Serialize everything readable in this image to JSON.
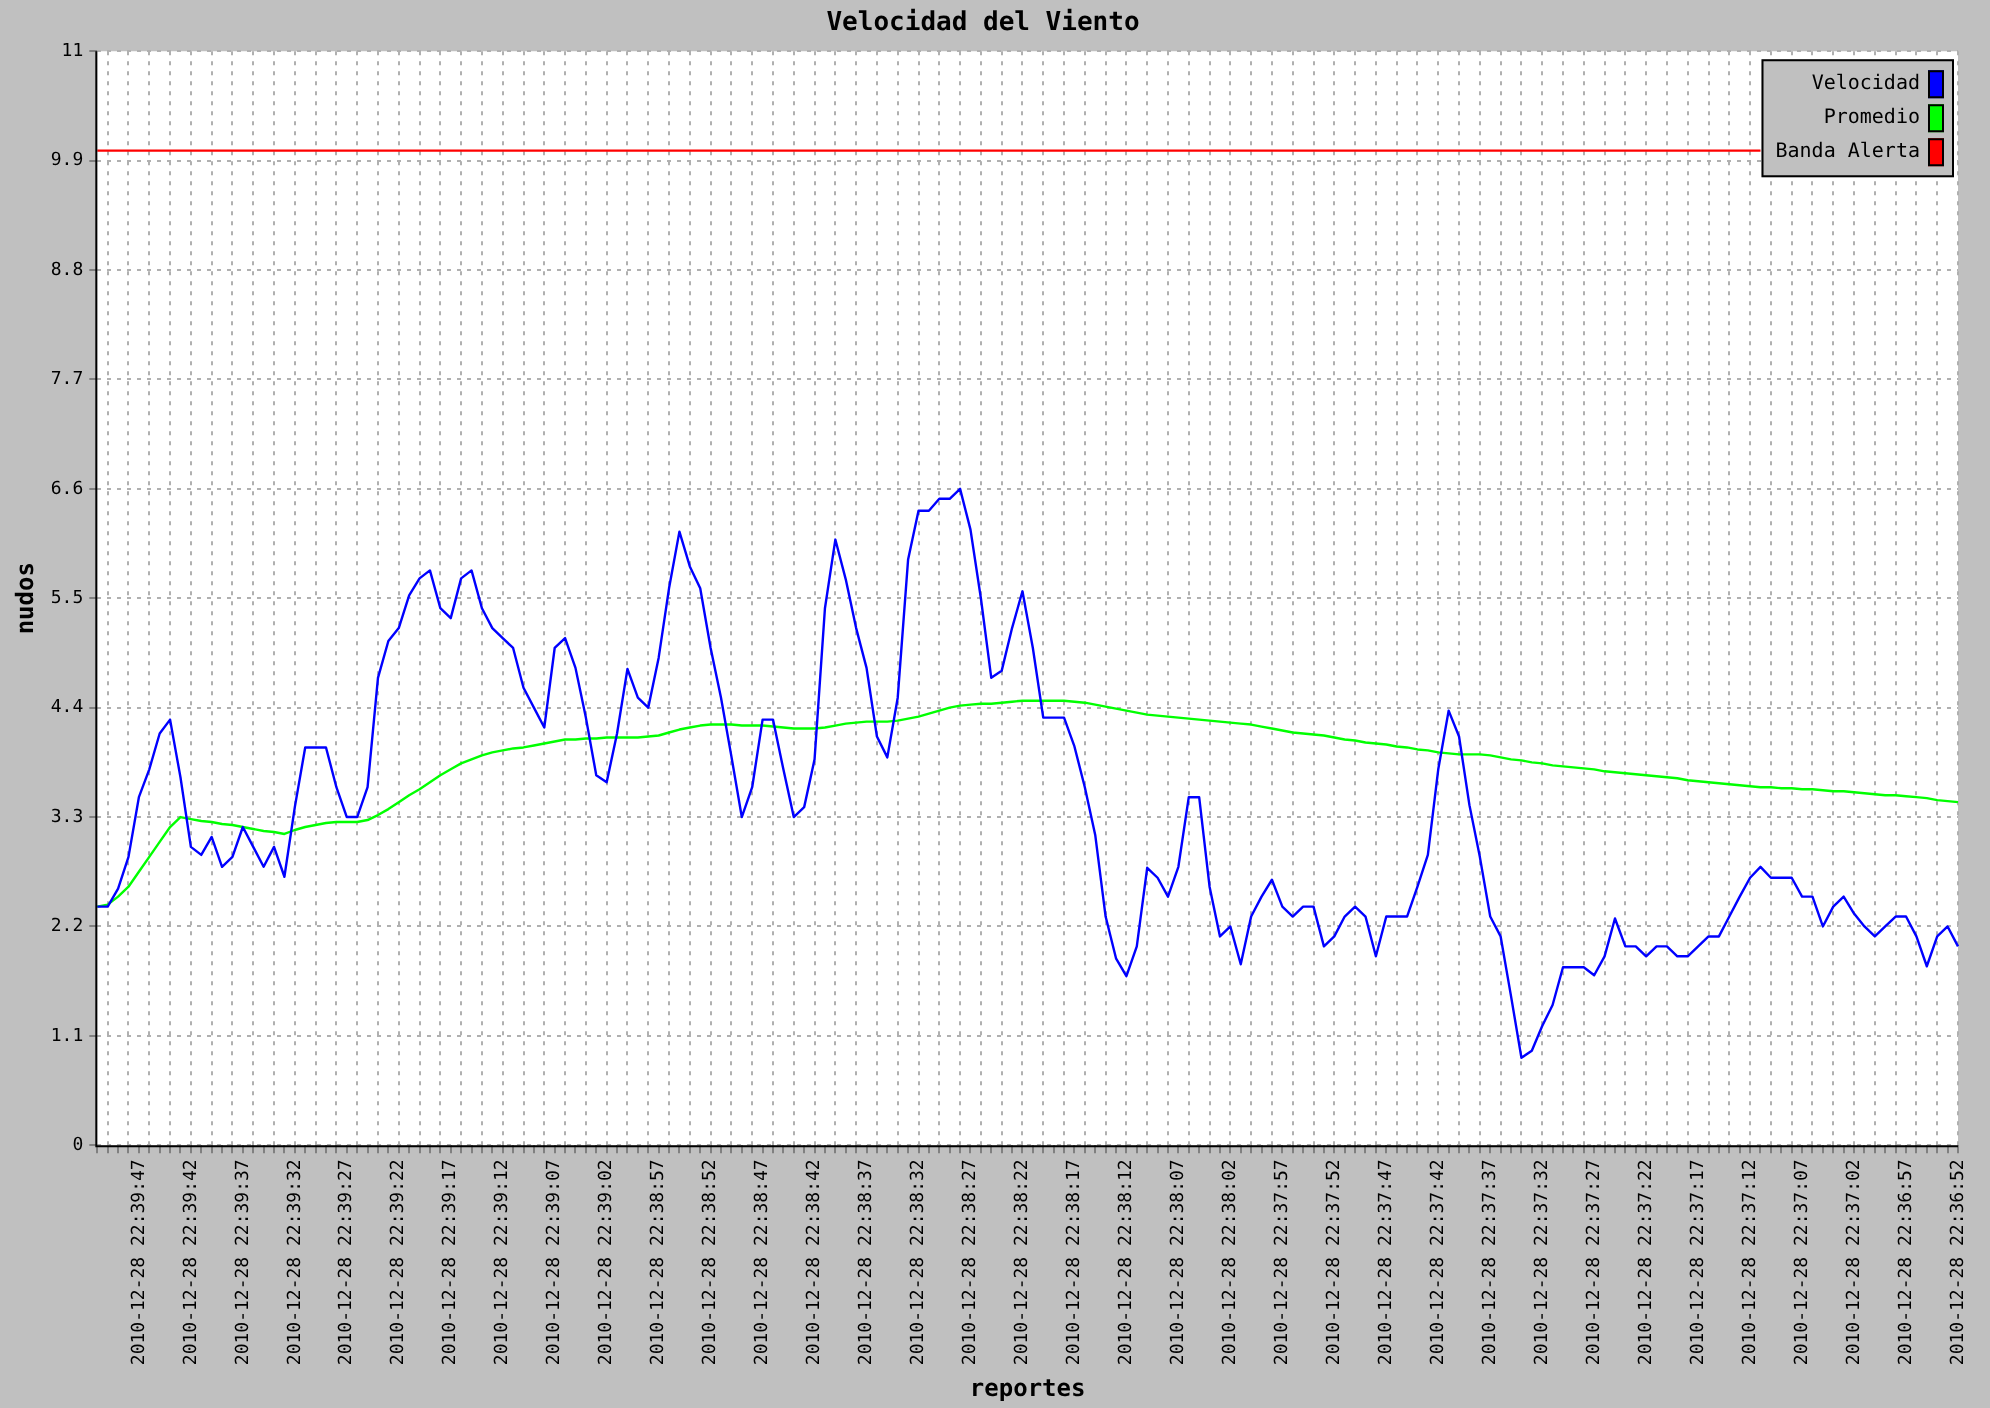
{
  "chart_data": {
    "type": "line",
    "title": "Velocidad del Viento",
    "xlabel": "reportes",
    "ylabel": "nudos",
    "categories": [
      null,
      null,
      null,
      null,
      "2010-12-28 22:39:47",
      null,
      null,
      null,
      null,
      "2010-12-28 22:39:42",
      null,
      null,
      null,
      null,
      "2010-12-28 22:39:37",
      null,
      null,
      null,
      null,
      "2010-12-28 22:39:32",
      null,
      null,
      null,
      null,
      "2010-12-28 22:39:27",
      null,
      null,
      null,
      null,
      "2010-12-28 22:39:22",
      null,
      null,
      null,
      null,
      "2010-12-28 22:39:17",
      null,
      null,
      null,
      null,
      "2010-12-28 22:39:12",
      null,
      null,
      null,
      null,
      "2010-12-28 22:39:07",
      null,
      null,
      null,
      null,
      "2010-12-28 22:39:02",
      null,
      null,
      null,
      null,
      "2010-12-28 22:38:57",
      null,
      null,
      null,
      null,
      "2010-12-28 22:38:52",
      null,
      null,
      null,
      null,
      "2010-12-28 22:38:47",
      null,
      null,
      null,
      null,
      "2010-12-28 22:38:42",
      null,
      null,
      null,
      null,
      "2010-12-28 22:38:37",
      null,
      null,
      null,
      null,
      "2010-12-28 22:38:32",
      null,
      null,
      null,
      null,
      "2010-12-28 22:38:27",
      null,
      null,
      null,
      null,
      "2010-12-28 22:38:22",
      null,
      null,
      null,
      null,
      "2010-12-28 22:38:17",
      null,
      null,
      null,
      null,
      "2010-12-28 22:38:12",
      null,
      null,
      null,
      null,
      "2010-12-28 22:38:07",
      null,
      null,
      null,
      null,
      "2010-12-28 22:38:02",
      null,
      null,
      null,
      null,
      "2010-12-28 22:37:57",
      null,
      null,
      null,
      null,
      "2010-12-28 22:37:52",
      null,
      null,
      null,
      null,
      "2010-12-28 22:37:47",
      null,
      null,
      null,
      null,
      "2010-12-28 22:37:42",
      null,
      null,
      null,
      null,
      "2010-12-28 22:37:37",
      null,
      null,
      null,
      null,
      "2010-12-28 22:37:32",
      null,
      null,
      null,
      null,
      "2010-12-28 22:37:27",
      null,
      null,
      null,
      null,
      "2010-12-28 22:37:22",
      null,
      null,
      null,
      null,
      "2010-12-28 22:37:17",
      null,
      null,
      null,
      null,
      "2010-12-28 22:37:12",
      null,
      null,
      null,
      null,
      "2010-12-28 22:37:07",
      null,
      null,
      null,
      null,
      "2010-12-28 22:37:02",
      null,
      null,
      null,
      null,
      "2010-12-28 22:36:57",
      null,
      null,
      null,
      null,
      "2010-12-28 22:36:52"
    ],
    "series": [
      {
        "name": "Velocidad",
        "color": "#0000ff",
        "values": [
          2.4,
          2.4,
          2.58,
          2.9,
          3.5,
          3.78,
          4.14,
          4.28,
          3.7,
          3.0,
          2.92,
          3.1,
          2.8,
          2.9,
          3.2,
          3.0,
          2.8,
          3.0,
          2.7,
          3.4,
          4.0,
          4.0,
          4.0,
          3.6,
          3.3,
          3.3,
          3.6,
          4.7,
          5.07,
          5.2,
          5.53,
          5.7,
          5.78,
          5.4,
          5.3,
          5.7,
          5.78,
          5.4,
          5.2,
          5.1,
          5.0,
          4.6,
          4.4,
          4.2,
          5.0,
          5.1,
          4.8,
          4.3,
          3.72,
          3.65,
          4.14,
          4.79,
          4.5,
          4.4,
          4.9,
          5.6,
          6.17,
          5.82,
          5.6,
          5.0,
          4.5,
          3.91,
          3.3,
          3.6,
          4.28,
          4.28,
          3.78,
          3.3,
          3.4,
          3.88,
          5.4,
          6.09,
          5.69,
          5.2,
          4.8,
          4.11,
          3.9,
          4.5,
          5.89,
          6.38,
          6.38,
          6.5,
          6.5,
          6.6,
          6.19,
          5.5,
          4.7,
          4.77,
          5.2,
          5.57,
          5.0,
          4.3,
          4.3,
          4.3,
          4.01,
          3.6,
          3.12,
          2.3,
          1.88,
          1.7,
          2.0,
          2.79,
          2.69,
          2.5,
          2.8,
          3.5,
          3.5,
          2.6,
          2.1,
          2.2,
          1.82,
          2.3,
          2.5,
          2.67,
          2.4,
          2.3,
          2.4,
          2.4,
          2.0,
          2.1,
          2.3,
          2.4,
          2.3,
          1.9,
          2.3,
          2.3,
          2.3,
          2.6,
          2.92,
          3.78,
          4.37,
          4.11,
          3.42,
          2.9,
          2.3,
          2.1,
          1.5,
          0.88,
          0.95,
          1.2,
          1.41,
          1.79,
          1.79,
          1.79,
          1.71,
          1.9,
          2.28,
          2.0,
          2.0,
          1.9,
          2.0,
          2.0,
          1.9,
          1.9,
          2.0,
          2.1,
          2.1,
          2.3,
          2.5,
          2.69,
          2.8,
          2.69,
          2.69,
          2.69,
          2.5,
          2.5,
          2.2,
          2.4,
          2.5,
          2.33,
          2.2,
          2.1,
          2.2,
          2.3,
          2.3,
          2.1,
          1.8,
          2.1,
          2.2,
          2.0
        ]
      },
      {
        "name": "Promedio",
        "color": "#00ff00",
        "values": [
          2.4,
          2.42,
          2.5,
          2.6,
          2.75,
          2.9,
          3.05,
          3.2,
          3.3,
          3.28,
          3.26,
          3.25,
          3.23,
          3.22,
          3.2,
          3.18,
          3.16,
          3.15,
          3.13,
          3.17,
          3.2,
          3.22,
          3.24,
          3.25,
          3.25,
          3.25,
          3.27,
          3.32,
          3.38,
          3.45,
          3.52,
          3.58,
          3.65,
          3.72,
          3.78,
          3.84,
          3.88,
          3.92,
          3.95,
          3.97,
          3.99,
          4.0,
          4.02,
          4.04,
          4.06,
          4.08,
          4.08,
          4.09,
          4.09,
          4.1,
          4.1,
          4.1,
          4.1,
          4.11,
          4.12,
          4.15,
          4.18,
          4.2,
          4.22,
          4.23,
          4.23,
          4.23,
          4.22,
          4.22,
          4.22,
          4.21,
          4.2,
          4.19,
          4.19,
          4.19,
          4.2,
          4.22,
          4.24,
          4.25,
          4.26,
          4.26,
          4.26,
          4.27,
          4.29,
          4.31,
          4.34,
          4.37,
          4.4,
          4.42,
          4.43,
          4.44,
          4.44,
          4.45,
          4.46,
          4.47,
          4.47,
          4.47,
          4.47,
          4.47,
          4.46,
          4.45,
          4.43,
          4.41,
          4.39,
          4.37,
          4.35,
          4.33,
          4.32,
          4.31,
          4.3,
          4.29,
          4.28,
          4.27,
          4.26,
          4.25,
          4.24,
          4.23,
          4.21,
          4.19,
          4.17,
          4.15,
          4.14,
          4.13,
          4.12,
          4.1,
          4.08,
          4.07,
          4.05,
          4.04,
          4.03,
          4.01,
          4.0,
          3.98,
          3.97,
          3.95,
          3.94,
          3.93,
          3.93,
          3.93,
          3.92,
          3.9,
          3.88,
          3.87,
          3.85,
          3.84,
          3.82,
          3.81,
          3.8,
          3.79,
          3.78,
          3.76,
          3.75,
          3.74,
          3.73,
          3.72,
          3.71,
          3.7,
          3.69,
          3.67,
          3.66,
          3.65,
          3.64,
          3.63,
          3.62,
          3.61,
          3.6,
          3.6,
          3.59,
          3.59,
          3.58,
          3.58,
          3.57,
          3.56,
          3.56,
          3.55,
          3.54,
          3.53,
          3.52,
          3.52,
          3.51,
          3.5,
          3.49,
          3.47,
          3.46,
          3.45
        ]
      },
      {
        "name": "Banda Alerta",
        "color": "#ff0000",
        "values": [
          10,
          10,
          10,
          10,
          10,
          10,
          10,
          10,
          10,
          10,
          10,
          10,
          10,
          10,
          10,
          10,
          10,
          10,
          10,
          10,
          10,
          10,
          10,
          10,
          10,
          10,
          10,
          10,
          10,
          10,
          10,
          10,
          10,
          10,
          10,
          10,
          10,
          10,
          10,
          10,
          10,
          10,
          10,
          10,
          10,
          10,
          10,
          10,
          10,
          10,
          10,
          10,
          10,
          10,
          10,
          10,
          10,
          10,
          10,
          10,
          10,
          10,
          10,
          10,
          10,
          10,
          10,
          10,
          10,
          10,
          10,
          10,
          10,
          10,
          10,
          10,
          10,
          10,
          10,
          10,
          10,
          10,
          10,
          10,
          10,
          10,
          10,
          10,
          10,
          10,
          10,
          10,
          10,
          10,
          10,
          10,
          10,
          10,
          10,
          10,
          10,
          10,
          10,
          10,
          10,
          10,
          10,
          10,
          10,
          10,
          10,
          10,
          10,
          10,
          10,
          10,
          10,
          10,
          10,
          10,
          10,
          10,
          10,
          10,
          10,
          10,
          10,
          10,
          10,
          10,
          10,
          10,
          10,
          10,
          10,
          10,
          10,
          10,
          10,
          10,
          10,
          10,
          10,
          10,
          10,
          10,
          10,
          10,
          10,
          10,
          10,
          10,
          10,
          10,
          10,
          10,
          10,
          10,
          10,
          10,
          10,
          null,
          null,
          null,
          null,
          null,
          null,
          null,
          null,
          null,
          null,
          null,
          null,
          null,
          null,
          null,
          null,
          null,
          null,
          null
        ]
      }
    ],
    "ylim": [
      0,
      11
    ],
    "yticks": [
      0,
      1.1,
      2.2,
      3.3,
      4.4,
      5.5,
      6.6,
      7.7,
      8.8,
      9.9,
      11
    ],
    "grid": true,
    "legend": "top right"
  }
}
